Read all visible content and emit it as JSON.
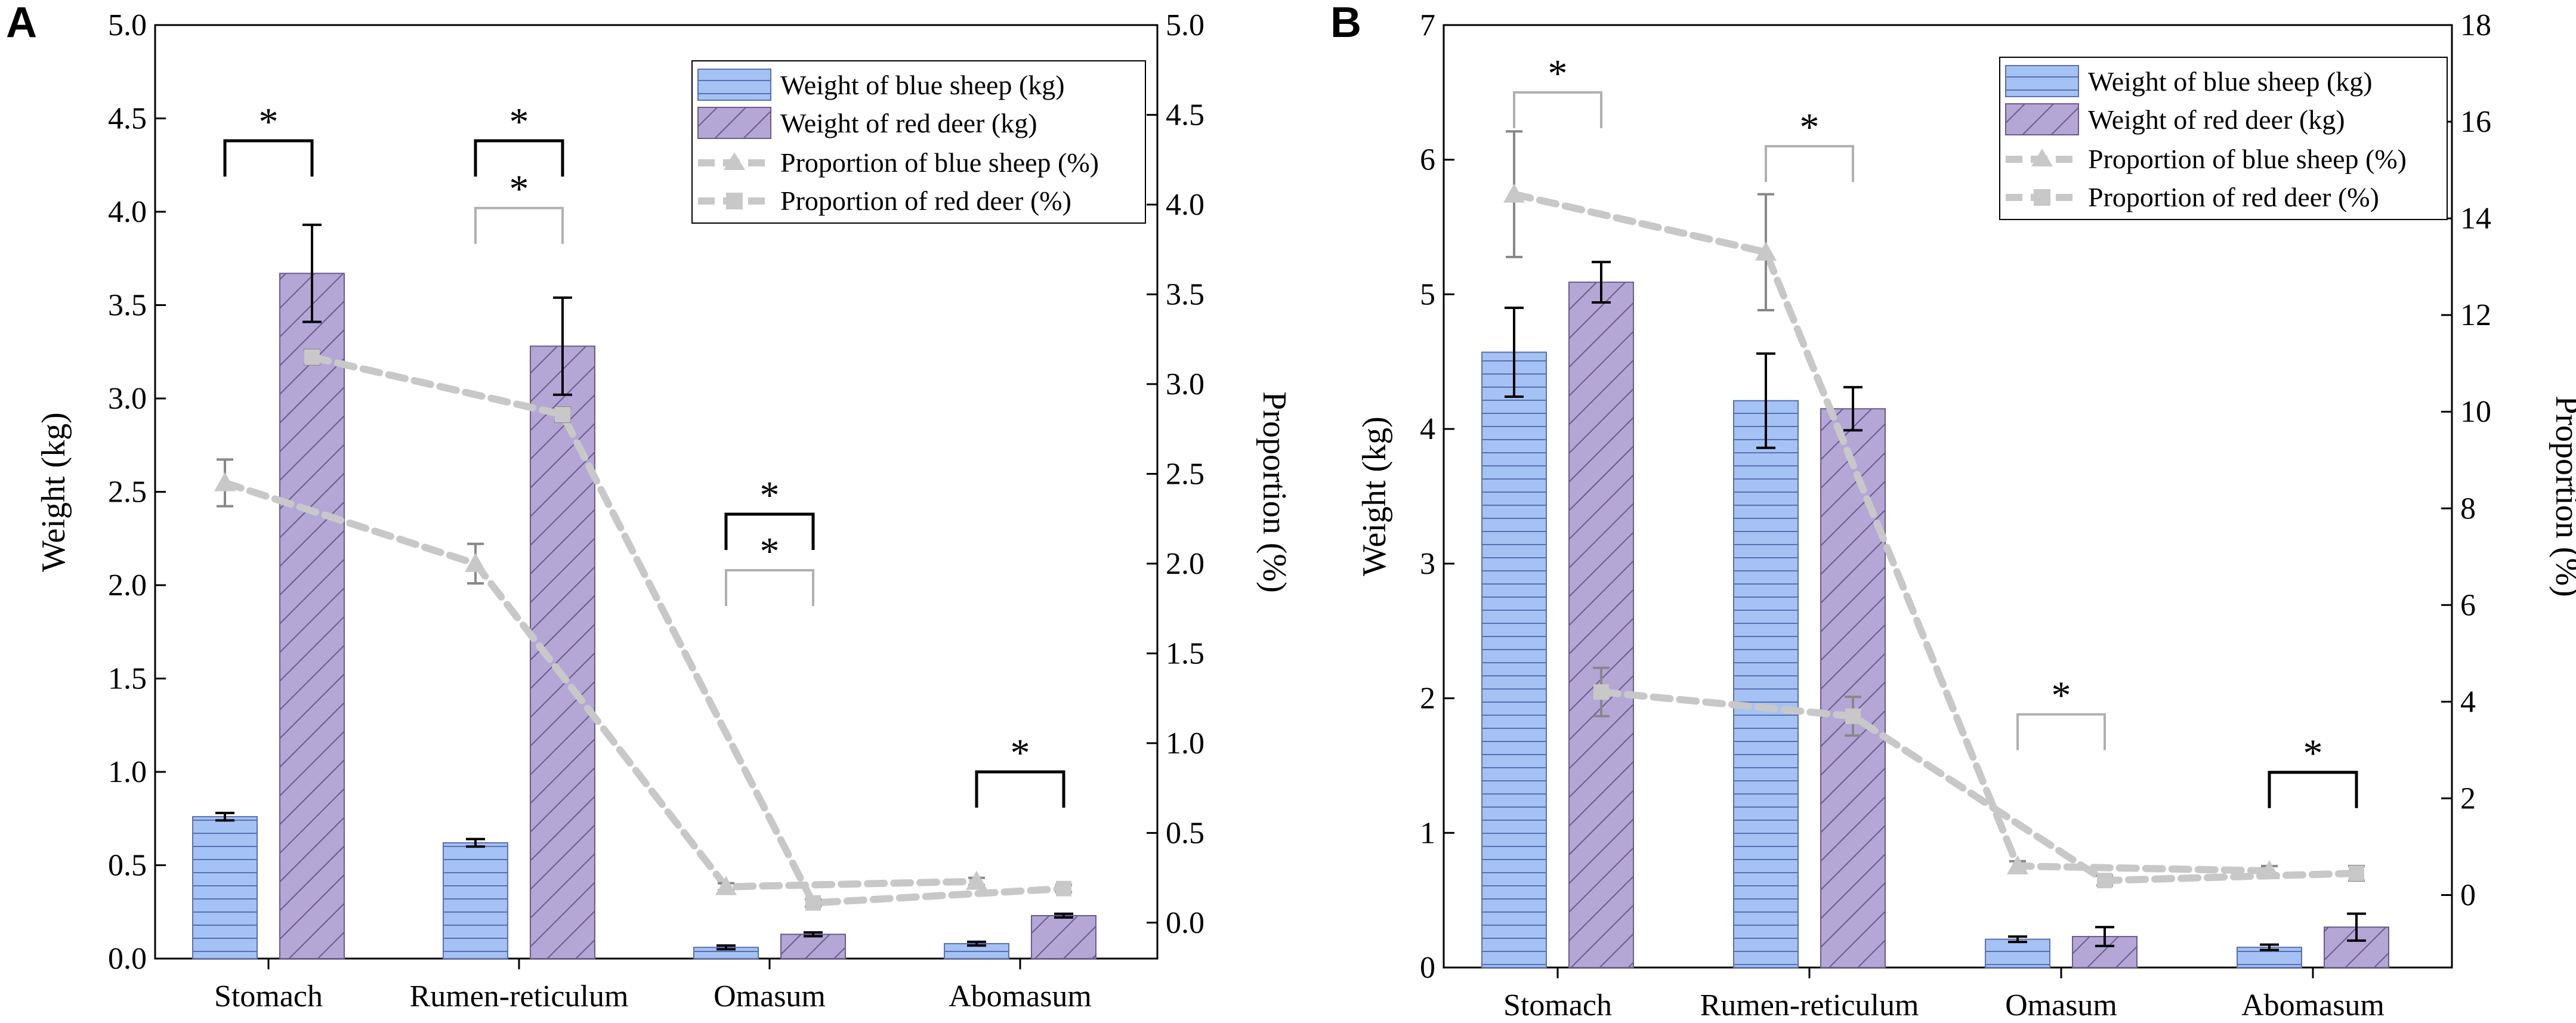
{
  "colors": {
    "blue": "#a4c2f4",
    "blue_line": "#5b6fb0",
    "purple": "#b4a7d6",
    "purple_line": "#6a5a8e",
    "trend": "#c8c8c8",
    "sig_dark": "#000000",
    "sig_light": "#b0b0b0"
  },
  "chart_data": [
    {
      "panel": "A",
      "type": "bar",
      "categories": [
        "Stomach",
        "Rumen-reticulum",
        "Omasum",
        "Abomasum"
      ],
      "ylabel": "Weight (kg)",
      "y2label": "Proportion (%)",
      "ylim": [
        0,
        5
      ],
      "yticks": [
        "0.0",
        "0.5",
        "1.0",
        "1.5",
        "2.0",
        "2.5",
        "3.0",
        "3.5",
        "4.0",
        "4.5",
        "5.0"
      ],
      "y2lim": [
        -0.2,
        5.0
      ],
      "y2ticks": [
        "0.0",
        "0.5",
        "1.0",
        "1.5",
        "2.0",
        "2.5",
        "3.0",
        "3.5",
        "4.0",
        "4.5",
        "5.0"
      ],
      "series": [
        {
          "name": "Weight of blue sheep (kg)",
          "kind": "bar",
          "values": [
            0.76,
            0.62,
            0.06,
            0.08
          ],
          "errors": [
            0.02,
            0.02,
            0.01,
            0.01
          ]
        },
        {
          "name": "Weight of red deer (kg)",
          "kind": "bar",
          "values": [
            3.67,
            3.28,
            0.13,
            0.23
          ],
          "errors": [
            0.26,
            0.26,
            0.01,
            0.01
          ]
        },
        {
          "name": "Proportion of blue sheep (%)",
          "kind": "line",
          "marker": "triangle",
          "values": [
            2.45,
            2.0,
            0.2,
            0.23
          ],
          "errors": [
            0.13,
            0.11,
            0.02,
            0.02
          ]
        },
        {
          "name": "Proportion of red deer (%)",
          "kind": "line",
          "marker": "square",
          "values": [
            3.15,
            2.83,
            0.11,
            0.19
          ],
          "errors": [
            0.04,
            0.04,
            0.02,
            0.02
          ]
        }
      ],
      "significance": [
        {
          "label": "*",
          "style": "dark",
          "from": 0,
          "to": 0,
          "y": 4.38
        },
        {
          "label": "*",
          "style": "dark",
          "from": 1,
          "to": 1,
          "y": 4.38
        },
        {
          "label": "*",
          "style": "light",
          "from": 1,
          "to": 1,
          "y": 4.02
        },
        {
          "label": "*",
          "style": "dark",
          "from": 2,
          "to": 2,
          "y": 2.38
        },
        {
          "label": "*",
          "style": "light",
          "from": 2,
          "to": 2,
          "y": 2.08
        },
        {
          "label": "*",
          "style": "dark",
          "from": 3,
          "to": 3,
          "y": 1.0
        }
      ]
    },
    {
      "panel": "B",
      "type": "bar",
      "categories": [
        "Stomach",
        "Rumen-reticulum",
        "Omasum",
        "Abomasum"
      ],
      "ylabel": "Weight (kg)",
      "y2label": "Proportion (%)",
      "ylim": [
        0,
        7
      ],
      "yticks": [
        "0",
        "1",
        "2",
        "3",
        "4",
        "5",
        "6",
        "7"
      ],
      "y2lim": [
        -1.5,
        18
      ],
      "y2ticks": [
        "0",
        "2",
        "4",
        "6",
        "8",
        "10",
        "12",
        "14",
        "16",
        "18"
      ],
      "series": [
        {
          "name": "Weight of blue sheep (kg)",
          "kind": "bar",
          "values": [
            4.57,
            4.21,
            0.21,
            0.15
          ],
          "errors": [
            0.33,
            0.35,
            0.02,
            0.02
          ]
        },
        {
          "name": "Weight of red deer (kg)",
          "kind": "bar",
          "values": [
            5.09,
            4.15,
            0.23,
            0.3
          ],
          "errors": [
            0.15,
            0.16,
            0.07,
            0.1
          ]
        },
        {
          "name": "Proportion of blue sheep (%)",
          "kind": "line",
          "marker": "triangle",
          "values": [
            14.5,
            13.3,
            0.6,
            0.5
          ],
          "errors": [
            1.3,
            1.2,
            0.1,
            0.1
          ]
        },
        {
          "name": "Proportion of red deer (%)",
          "kind": "line",
          "marker": "square",
          "values": [
            4.2,
            3.7,
            0.3,
            0.45
          ],
          "errors": [
            0.5,
            0.4,
            0.1,
            0.15
          ]
        }
      ],
      "significance": [
        {
          "label": "*",
          "style": "light",
          "from": 0,
          "to": 0,
          "y": 6.5
        },
        {
          "label": "*",
          "style": "light",
          "from": 1,
          "to": 1,
          "y": 6.1
        },
        {
          "label": "*",
          "style": "light",
          "from": 2,
          "to": 2,
          "y": 1.88
        },
        {
          "label": "*",
          "style": "dark",
          "from": 3,
          "to": 3,
          "y": 1.45
        }
      ]
    }
  ]
}
